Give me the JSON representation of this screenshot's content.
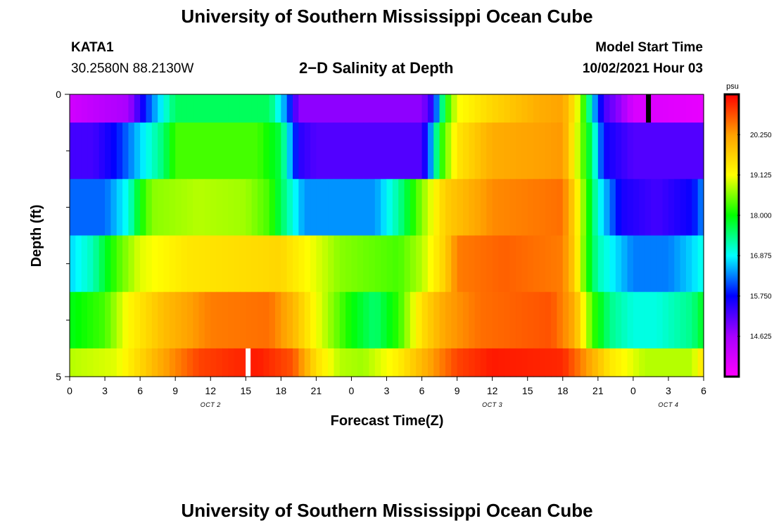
{
  "page": {
    "title_top": "University of Southern Mississippi Ocean Cube",
    "title_bottom": "University of Southern Mississippi Ocean Cube",
    "station_id": "KATA1",
    "coordinates": "30.2580N  88.2130W",
    "subtitle": "2−D Salinity at Depth",
    "model_start_label": "Model Start Time",
    "model_start_value": "10/02/2021 Hour 03"
  },
  "chart_data": {
    "type": "heatmap",
    "title": "2−D Salinity at Depth",
    "xlabel": "Forecast Time(Z)",
    "ylabel": "Depth (ft)",
    "x_range_hours": [
      0,
      54
    ],
    "x_tick_hours": [
      0,
      3,
      6,
      9,
      12,
      15,
      18,
      21,
      24,
      27,
      30,
      33,
      36,
      39,
      42,
      45,
      48,
      51,
      54
    ],
    "x_tick_labels": [
      "0",
      "3",
      "6",
      "9",
      "12",
      "15",
      "18",
      "21",
      "0",
      "3",
      "6",
      "9",
      "12",
      "15",
      "18",
      "21",
      "0",
      "3",
      "6"
    ],
    "date_labels": [
      {
        "hour": 12,
        "label": "OCT 2"
      },
      {
        "hour": 36,
        "label": "OCT 3"
      },
      {
        "hour": 51,
        "label": "OCT 4"
      }
    ],
    "y_range": [
      0,
      5
    ],
    "y_tick_labels": [
      {
        "depth": 0,
        "label": "0"
      },
      {
        "depth": 5,
        "label": "5"
      }
    ],
    "y_minor_ticks": [
      1,
      2,
      3,
      4
    ],
    "depth_layers": [
      0,
      1,
      2,
      3,
      4,
      5
    ],
    "colorbar": {
      "unit": "psu",
      "min": 13.5,
      "max": 21.375,
      "tick_values": [
        14.625,
        15.75,
        16.875,
        18.0,
        19.125,
        20.25
      ],
      "tick_labels": [
        "14.625",
        "15.750",
        "16.875",
        "18.000",
        "19.125",
        "20.250"
      ],
      "colors": [
        "#ff00ff",
        "#a800ff",
        "#0000ff",
        "#00ffff",
        "#00ff00",
        "#ffff00",
        "#ffa000",
        "#ff0000"
      ]
    },
    "layers": [
      {
        "depth_range": [
          0,
          0.5
        ],
        "points": [
          [
            0,
            14.1
          ],
          [
            5,
            14.6
          ],
          [
            7,
            16.3
          ],
          [
            9,
            17.6
          ],
          [
            11,
            17.6
          ],
          [
            17,
            17.6
          ],
          [
            18.5,
            16.3
          ],
          [
            19.5,
            14.8
          ],
          [
            30,
            14.8
          ],
          [
            31,
            15.6
          ],
          [
            31.5,
            16.9
          ],
          [
            32,
            18.0
          ],
          [
            33,
            19.1
          ],
          [
            36,
            19.6
          ],
          [
            40,
            20.1
          ],
          [
            42,
            20.2
          ],
          [
            43,
            19.4
          ],
          [
            44,
            17.9
          ],
          [
            44.5,
            16.8
          ],
          [
            45.5,
            15.3
          ],
          [
            47,
            14.7
          ],
          [
            48,
            14.0
          ],
          [
            54,
            13.8
          ]
        ]
      },
      {
        "depth_range": [
          0.5,
          1.5
        ],
        "points": [
          [
            0,
            15.3
          ],
          [
            2,
            15.3
          ],
          [
            4,
            15.8
          ],
          [
            6,
            16.7
          ],
          [
            8,
            17.5
          ],
          [
            9,
            18.3
          ],
          [
            16,
            18.3
          ],
          [
            18,
            17.7
          ],
          [
            19.5,
            15.5
          ],
          [
            21,
            15.2
          ],
          [
            30,
            15.2
          ],
          [
            31,
            16.8
          ],
          [
            31.5,
            18.0
          ],
          [
            33,
            19.4
          ],
          [
            36,
            20.1
          ],
          [
            42,
            20.3
          ],
          [
            43,
            19.2
          ],
          [
            44.5,
            17.5
          ],
          [
            45.5,
            15.7
          ],
          [
            48,
            15.2
          ],
          [
            54,
            15.2
          ]
        ]
      },
      {
        "depth_range": [
          1.5,
          2.5
        ],
        "points": [
          [
            0,
            16.2
          ],
          [
            3,
            16.2
          ],
          [
            5,
            17.0
          ],
          [
            6,
            18.0
          ],
          [
            7,
            18.6
          ],
          [
            11,
            18.8
          ],
          [
            15,
            18.7
          ],
          [
            17,
            18.3
          ],
          [
            18.5,
            17.3
          ],
          [
            20,
            16.4
          ],
          [
            26,
            16.4
          ],
          [
            28,
            17.3
          ],
          [
            30,
            18.6
          ],
          [
            32,
            19.7
          ],
          [
            36,
            20.4
          ],
          [
            42,
            20.6
          ],
          [
            43,
            19.6
          ],
          [
            45,
            17.0
          ],
          [
            47,
            15.6
          ],
          [
            50,
            15.3
          ],
          [
            53,
            15.7
          ],
          [
            54,
            16.4
          ]
        ]
      },
      {
        "depth_range": [
          2.5,
          3.5
        ],
        "points": [
          [
            0,
            16.7
          ],
          [
            2,
            17.2
          ],
          [
            3,
            17.8
          ],
          [
            4,
            18.3
          ],
          [
            6,
            19.0
          ],
          [
            10,
            19.4
          ],
          [
            18,
            19.6
          ],
          [
            21,
            19.0
          ],
          [
            23,
            18.6
          ],
          [
            28,
            18.3
          ],
          [
            30,
            18.8
          ],
          [
            32,
            19.7
          ],
          [
            33,
            20.5
          ],
          [
            37,
            20.7
          ],
          [
            42,
            20.5
          ],
          [
            43,
            19.7
          ],
          [
            44,
            18.2
          ],
          [
            45,
            17.2
          ],
          [
            48,
            16.3
          ],
          [
            51,
            16.3
          ],
          [
            53,
            16.7
          ],
          [
            54,
            17.0
          ]
        ]
      },
      {
        "depth_range": [
          3.5,
          4.5
        ],
        "points": [
          [
            0,
            17.9
          ],
          [
            3,
            18.3
          ],
          [
            5,
            19.2
          ],
          [
            8,
            19.9
          ],
          [
            12,
            20.5
          ],
          [
            17,
            20.6
          ],
          [
            19,
            20.0
          ],
          [
            21,
            19.1
          ],
          [
            24,
            18.0
          ],
          [
            26,
            17.5
          ],
          [
            28,
            18.2
          ],
          [
            30,
            19.5
          ],
          [
            32,
            20.2
          ],
          [
            35,
            20.6
          ],
          [
            41,
            20.8
          ],
          [
            43,
            20.1
          ],
          [
            44.5,
            18.3
          ],
          [
            46,
            17.4
          ],
          [
            48,
            17.0
          ],
          [
            50,
            17.0
          ],
          [
            53,
            17.4
          ],
          [
            54,
            17.9
          ]
        ]
      },
      {
        "depth_range": [
          4.5,
          5
        ],
        "points": [
          [
            0,
            18.8
          ],
          [
            4,
            19.0
          ],
          [
            6,
            19.6
          ],
          [
            8,
            20.2
          ],
          [
            11,
            20.9
          ],
          [
            16,
            21.2
          ],
          [
            19,
            20.8
          ],
          [
            21,
            19.5
          ],
          [
            23,
            18.8
          ],
          [
            25,
            18.7
          ],
          [
            28,
            19.3
          ],
          [
            31,
            20.3
          ],
          [
            33,
            20.9
          ],
          [
            36,
            21.2
          ],
          [
            42,
            21.1
          ],
          [
            44,
            20.3
          ],
          [
            46,
            19.4
          ],
          [
            49,
            18.8
          ],
          [
            53,
            18.8
          ],
          [
            54,
            19.5
          ]
        ]
      }
    ],
    "markers": [
      {
        "hour": 15.2,
        "depth_range": [
          4.5,
          5
        ],
        "color": "#ffffff"
      },
      {
        "hour": 49.3,
        "depth_range": [
          0,
          0.5
        ],
        "color": "#000000"
      }
    ]
  }
}
